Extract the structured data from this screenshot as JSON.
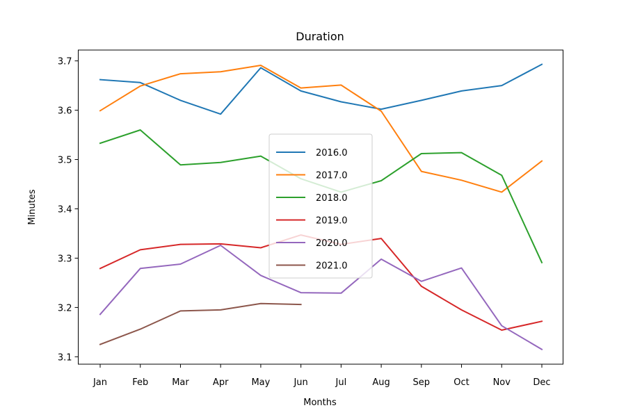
{
  "chart_data": {
    "type": "line",
    "title": "Duration",
    "xlabel": "Months",
    "ylabel": "Minutes",
    "categories": [
      "Jan",
      "Feb",
      "Mar",
      "Apr",
      "May",
      "Jun",
      "Jul",
      "Aug",
      "Sep",
      "Oct",
      "Nov",
      "Dec"
    ],
    "ylim": [
      3.085,
      3.722
    ],
    "yticks": [
      "3.1",
      "3.2",
      "3.3",
      "3.4",
      "3.5",
      "3.6",
      "3.7"
    ],
    "grid": false,
    "legend_position": "center",
    "series": [
      {
        "name": "2016.0",
        "color": "#1f77b4",
        "values": [
          3.662,
          3.656,
          3.62,
          3.592,
          3.686,
          3.639,
          3.617,
          3.602,
          3.62,
          3.639,
          3.65,
          3.693
        ]
      },
      {
        "name": "2017.0",
        "color": "#ff7f0e",
        "values": [
          3.599,
          3.649,
          3.674,
          3.678,
          3.691,
          3.645,
          3.651,
          3.598,
          3.476,
          3.458,
          3.434,
          3.497
        ]
      },
      {
        "name": "2018.0",
        "color": "#2ca02c",
        "values": [
          3.533,
          3.56,
          3.489,
          3.494,
          3.507,
          3.461,
          3.434,
          3.457,
          3.512,
          3.514,
          3.468,
          3.291
        ]
      },
      {
        "name": "2019.0",
        "color": "#d62728",
        "values": [
          3.279,
          3.317,
          3.328,
          3.329,
          3.321,
          3.347,
          3.328,
          3.34,
          3.243,
          3.195,
          3.154,
          3.172
        ]
      },
      {
        "name": "2020.0",
        "color": "#9467bd",
        "values": [
          3.186,
          3.279,
          3.288,
          3.326,
          3.265,
          3.23,
          3.229,
          3.298,
          3.253,
          3.28,
          3.163,
          3.115
        ]
      },
      {
        "name": "2021.0",
        "color": "#8c564b",
        "values": [
          3.125,
          3.156,
          3.193,
          3.195,
          3.208,
          3.206,
          null,
          null,
          null,
          null,
          null,
          null
        ]
      }
    ]
  }
}
